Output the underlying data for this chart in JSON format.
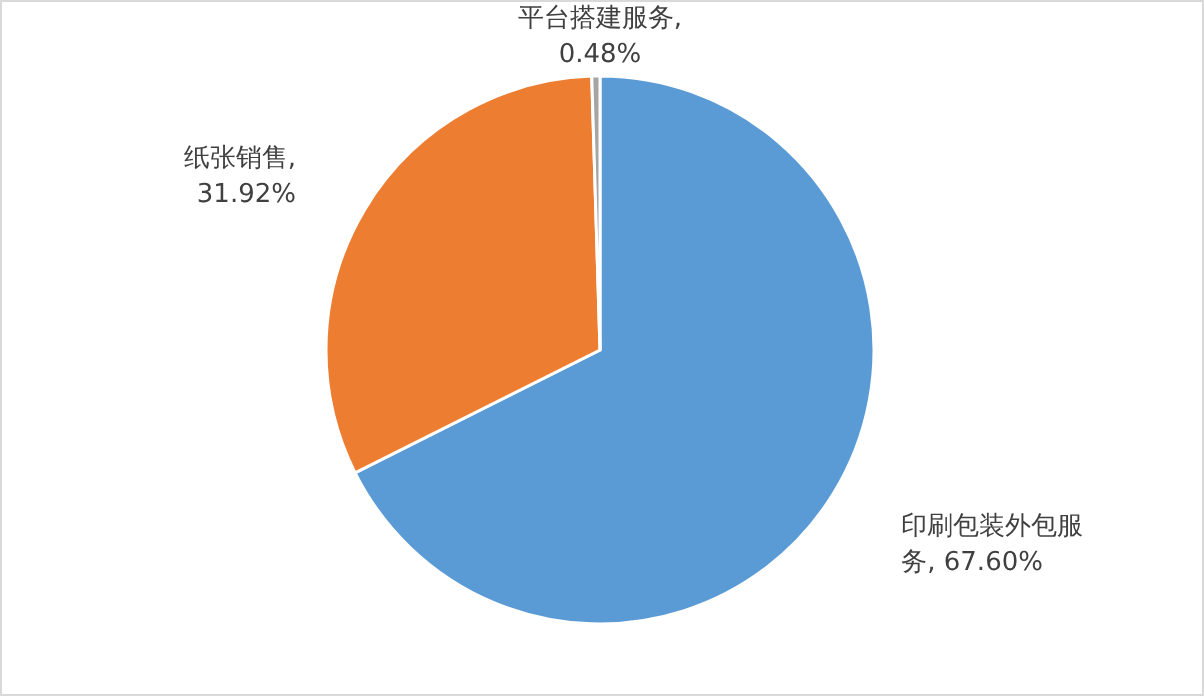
{
  "chart_data": {
    "type": "pie",
    "categories": [
      "印刷包装外包服务",
      "纸张销售",
      "平台搭建服务"
    ],
    "values": [
      67.6,
      31.92,
      0.48
    ],
    "colors": [
      "#5b9bd5",
      "#ed7d31",
      "#a5a5a5"
    ],
    "value_labels": [
      ", 67.60%",
      ", 31.92%",
      ", 0.48%"
    ],
    "legend": false
  }
}
